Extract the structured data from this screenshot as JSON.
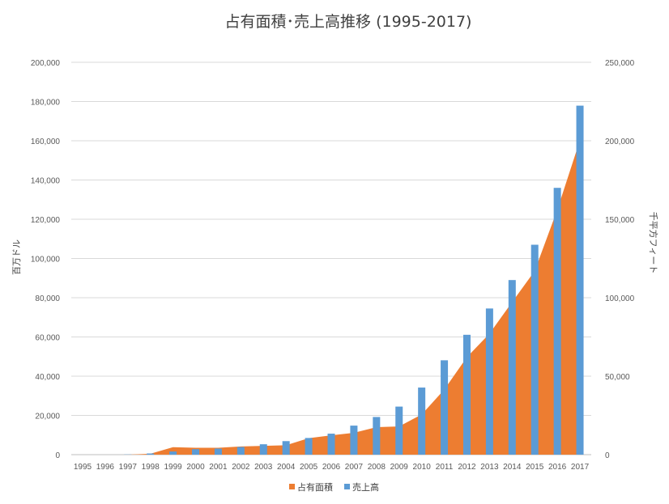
{
  "chart_data": {
    "type": "bar",
    "title": "占有面積･売上高推移 (1995-2017)",
    "ylabel": "百万ドル",
    "y2label": "千平方フィート",
    "ylim": [
      0,
      200000
    ],
    "y2lim": [
      0,
      250000
    ],
    "yticks": [
      "0",
      "20,000",
      "40,000",
      "60,000",
      "80,000",
      "100,000",
      "120,000",
      "140,000",
      "160,000",
      "180,000",
      "200,000"
    ],
    "y2ticks": [
      "0",
      "50,000",
      "100,000",
      "150,000",
      "200,000",
      "250,000"
    ],
    "grid": true,
    "legend_position": "bottom",
    "categories": [
      "1995",
      "1996",
      "1997",
      "1998",
      "1999",
      "2000",
      "2001",
      "2002",
      "2003",
      "2004",
      "2005",
      "2006",
      "2007",
      "2008",
      "2009",
      "2010",
      "2011",
      "2012",
      "2013",
      "2014",
      "2015",
      "2016",
      "2017"
    ],
    "series": [
      {
        "name": "占有面積",
        "type": "area",
        "axis": "right",
        "color": "#ED7D31",
        "values": [
          0,
          0,
          0,
          600,
          4800,
          4400,
          4400,
          5200,
          5600,
          6000,
          10500,
          12300,
          13900,
          17500,
          18000,
          25600,
          41500,
          62100,
          77100,
          97200,
          117100,
          156100,
          200300
        ]
      },
      {
        "name": "売上高",
        "type": "bar",
        "axis": "left",
        "color": "#5B9BD5",
        "values": [
          0,
          0,
          100,
          600,
          1600,
          2800,
          3100,
          3900,
          5300,
          6900,
          8500,
          10700,
          14800,
          19200,
          24500,
          34200,
          48100,
          61100,
          74500,
          89000,
          107000,
          136000,
          177900
        ]
      }
    ]
  }
}
